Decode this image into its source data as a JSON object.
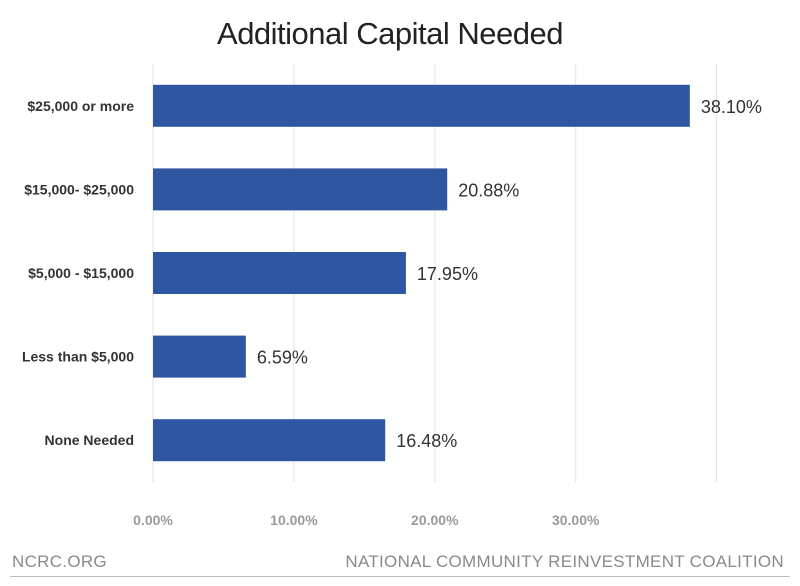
{
  "chart_data": {
    "type": "bar",
    "orientation": "horizontal",
    "title": "Additional Capital Needed",
    "categories": [
      "$25,000 or more",
      "$15,000- $25,000",
      "$5,000 - $15,000",
      "Less than $5,000",
      "None Needed"
    ],
    "values": [
      38.1,
      20.88,
      17.95,
      6.59,
      16.48
    ],
    "data_labels": [
      "38.10%",
      "20.88%",
      "17.95%",
      "6.59%",
      "16.48%"
    ],
    "xticks": [
      0,
      10,
      20,
      30
    ],
    "xtick_labels": [
      "0.00%",
      "10.00%",
      "20.00%",
      "30.00%"
    ],
    "xlim": [
      0,
      44.5
    ],
    "grid": true,
    "bar_color": "#2e56a3"
  },
  "footer": {
    "left": "NCRC.ORG",
    "right": "NATIONAL COMMUNITY REINVESTMENT COALITION"
  }
}
